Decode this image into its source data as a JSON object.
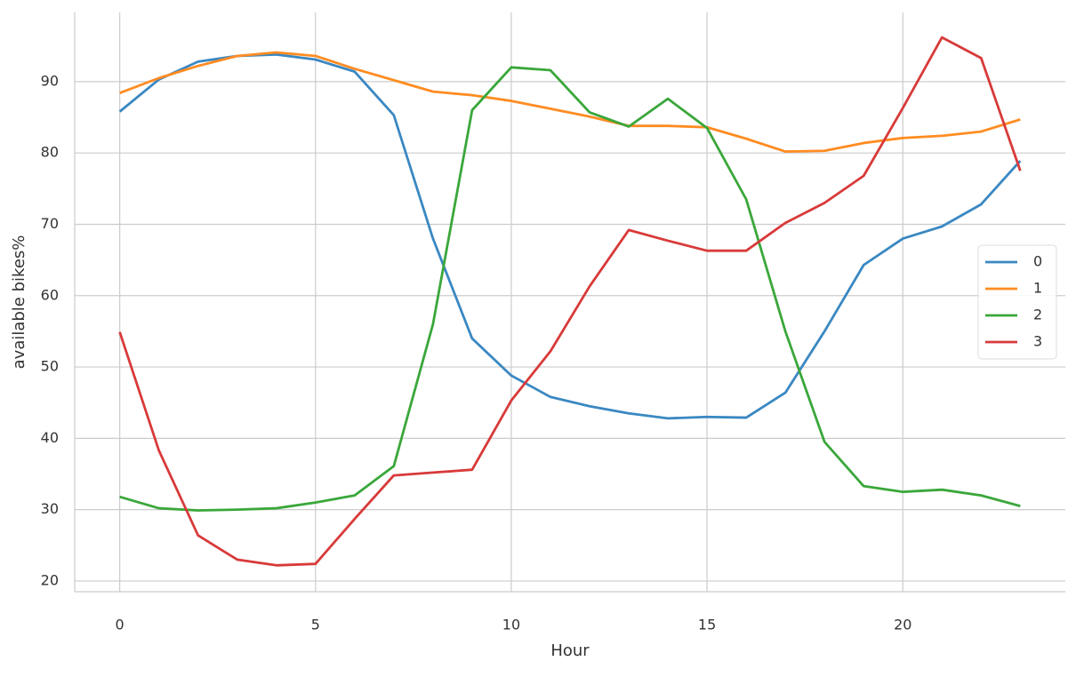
{
  "chart_data": {
    "type": "line",
    "x_label": "Hour",
    "y_label": "available bikes%",
    "x": [
      0,
      1,
      2,
      3,
      4,
      5,
      6,
      7,
      8,
      9,
      10,
      11,
      12,
      13,
      14,
      15,
      16,
      17,
      18,
      19,
      20,
      21,
      22,
      23
    ],
    "series": [
      {
        "name": "0",
        "color": "#3a88c2",
        "values": [
          85.8,
          90.3,
          92.8,
          93.6,
          93.8,
          93.1,
          91.4,
          85.3,
          68,
          54,
          48.8,
          45.8,
          44.5,
          43.5,
          42.8,
          43,
          42.9,
          46.4,
          55,
          64.3,
          68,
          69.7,
          72.8,
          78.9
        ]
      },
      {
        "name": "1",
        "color": "#ff8c22",
        "values": [
          88.4,
          90.5,
          92.2,
          93.6,
          94.1,
          93.6,
          91.8,
          90.2,
          88.6,
          88.1,
          87.3,
          86.2,
          85.1,
          83.8,
          83.8,
          83.6,
          82,
          80.2,
          80.3,
          81.4,
          82.1,
          82.4,
          83,
          84.7
        ]
      },
      {
        "name": "2",
        "color": "#3aa73a",
        "values": [
          31.8,
          30.2,
          29.9,
          30,
          30.2,
          31,
          32,
          36.1,
          56,
          86,
          92,
          91.6,
          85.7,
          83.7,
          87.6,
          83.5,
          73.5,
          55,
          39.5,
          33.3,
          32.5,
          32.8,
          32,
          30.5
        ]
      },
      {
        "name": "3",
        "color": "#d83a3a",
        "values": [
          54.9,
          38.3,
          26.4,
          23,
          22.2,
          22.4,
          28.7,
          34.8,
          35.2,
          35.6,
          45.3,
          52.2,
          61.3,
          69.2,
          67.7,
          66.3,
          66.3,
          70.2,
          73,
          76.8,
          86.3,
          96.2,
          93.3,
          77.5
        ]
      }
    ],
    "xlim": [
      -1.15,
      24.15
    ],
    "ylim": [
      18.5,
      99.7
    ],
    "xticks": [
      0,
      5,
      10,
      15,
      20
    ],
    "yticks": [
      20,
      30,
      40,
      50,
      60,
      70,
      80,
      90
    ],
    "grid": true,
    "legend": "right"
  }
}
